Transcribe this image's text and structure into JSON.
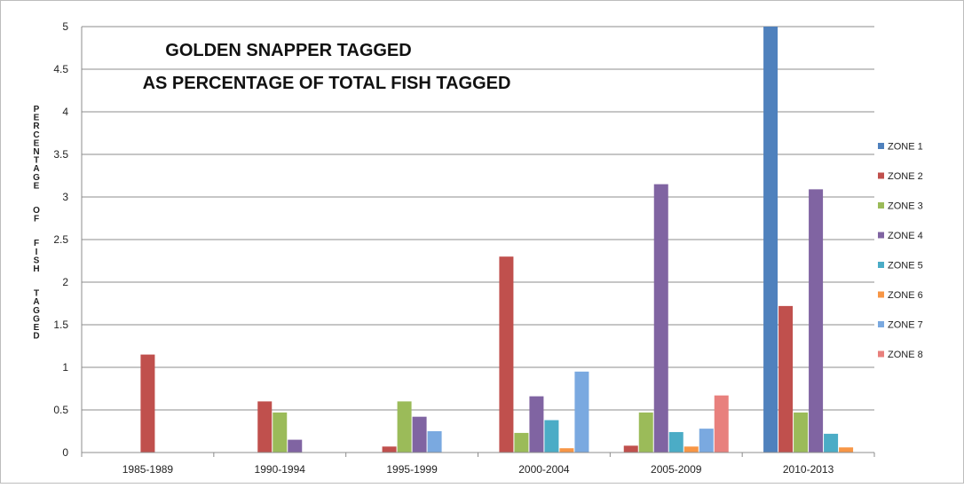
{
  "chart_data": {
    "type": "bar",
    "title_lines": [
      "GOLDEN SNAPPER TAGGED",
      "AS PERCENTAGE OF TOTAL FISH TAGGED"
    ],
    "ylabel": "PERCENTAGE OF FISH TAGGED",
    "xlabel": "",
    "categories": [
      "1985-1989",
      "1990-1994",
      "1995-1999",
      "2000-2004",
      "2005-2009",
      "2010-2013"
    ],
    "ylim": [
      0,
      5
    ],
    "yticks": [
      "0",
      "0.5",
      "1",
      "1.5",
      "2",
      "2.5",
      "3",
      "3.5",
      "4",
      "4.5",
      "5"
    ],
    "grid": "horizontal",
    "legend_position": "right",
    "series": [
      {
        "name": "ZONE 1",
        "color": "#4f81bd",
        "values": [
          0,
          0,
          0,
          0,
          0,
          5
        ]
      },
      {
        "name": "ZONE 2",
        "color": "#c0504d",
        "values": [
          1.15,
          0.6,
          0.07,
          2.3,
          0.08,
          1.72
        ]
      },
      {
        "name": "ZONE 3",
        "color": "#9bbb59",
        "values": [
          0,
          0.47,
          0.6,
          0.23,
          0.47,
          0.47
        ]
      },
      {
        "name": "ZONE 4",
        "color": "#8064a2",
        "values": [
          0,
          0.15,
          0.42,
          0.66,
          3.15,
          3.09
        ]
      },
      {
        "name": "ZONE 5",
        "color": "#4bacc6",
        "values": [
          0,
          0,
          0,
          0.38,
          0.24,
          0.22
        ]
      },
      {
        "name": "ZONE 6",
        "color": "#f79646",
        "values": [
          0,
          0,
          0,
          0.05,
          0.07,
          0.06
        ]
      },
      {
        "name": "ZONE 7",
        "color": "#7aa9e0",
        "values": [
          0,
          0,
          0.25,
          0.95,
          0.28,
          0
        ]
      },
      {
        "name": "ZONE 8",
        "color": "#e8807d",
        "values": [
          0,
          0,
          0,
          0,
          0.67,
          0
        ]
      }
    ]
  }
}
